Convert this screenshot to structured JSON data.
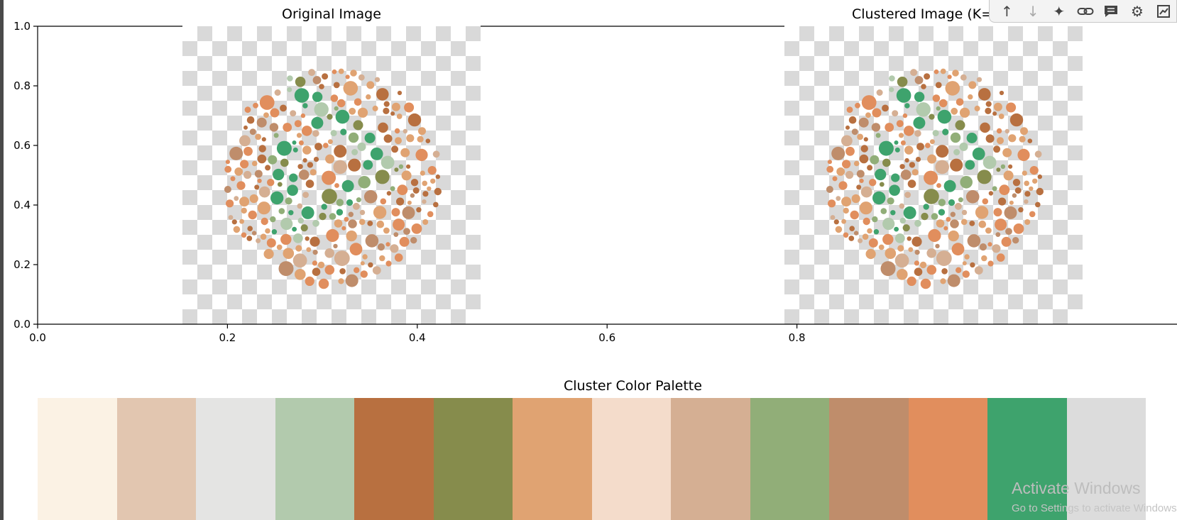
{
  "titles": {
    "original": "Original Image",
    "clustered": "Clustered Image (K=",
    "palette": "Cluster Color Palette"
  },
  "axes": {
    "y_ticks": [
      "0.0",
      "0.2",
      "0.4",
      "0.6",
      "0.8",
      "1.0"
    ],
    "x_ticks": [
      "0.0",
      "0.2",
      "0.4",
      "0.6",
      "0.8"
    ]
  },
  "palette_colors": [
    "#fbf2e4",
    "#e2c6b0",
    "#e4e4e3",
    "#b2caad",
    "#b87040",
    "#868c4c",
    "#e0a372",
    "#f4dccb",
    "#d5af93",
    "#91ae78",
    "#bf8d6b",
    "#e18e5d",
    "#3ea36d",
    "#dcdcdc"
  ],
  "dot_colors": [
    "#e0a372",
    "#b87040",
    "#e18e5d",
    "#d5af93",
    "#bf8d6b",
    "#e0a372",
    "#e18e5d",
    "#b87040"
  ],
  "figure_colors": [
    "#3ea36d",
    "#91ae78",
    "#868c4c",
    "#3ea36d",
    "#b2caad"
  ],
  "toolbar": {
    "icons": [
      "arrow-up-icon",
      "arrow-down-icon",
      "sparkle-icon",
      "link-icon",
      "comment-icon",
      "gear-icon",
      "chart-icon"
    ]
  },
  "watermark": {
    "title": "Activate Windows",
    "subtitle": "Go to Settings to activate Windows."
  }
}
